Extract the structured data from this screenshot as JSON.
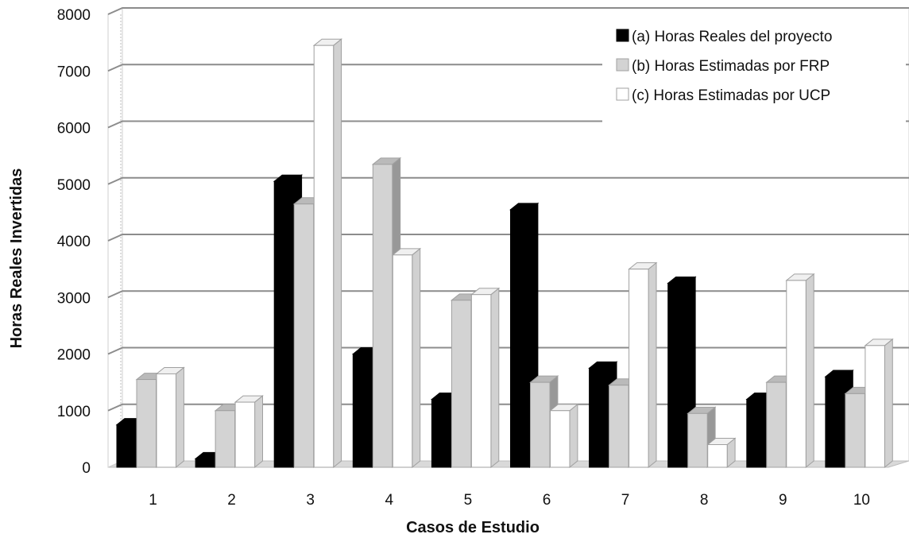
{
  "chart_data": {
    "type": "bar",
    "title": "",
    "xlabel": "Casos de Estudio",
    "ylabel": "Horas Reales Invertidas",
    "ylim": [
      0,
      8000
    ],
    "yticks": [
      0,
      1000,
      2000,
      3000,
      4000,
      5000,
      6000,
      7000,
      8000
    ],
    "categories": [
      "1",
      "2",
      "3",
      "4",
      "5",
      "6",
      "7",
      "8",
      "9",
      "10"
    ],
    "grid": true,
    "legend_position": "top-right",
    "series": [
      {
        "name": "(a) Horas Reales del proyecto",
        "color": "#000000",
        "values": [
          750,
          150,
          5050,
          2000,
          1200,
          4550,
          1750,
          3250,
          1200,
          1600
        ]
      },
      {
        "name": "(b) Horas Estimadas por FRP",
        "color": "#d3d3d3",
        "values": [
          1550,
          1000,
          4650,
          5350,
          2950,
          1500,
          1450,
          950,
          1500,
          1300
        ]
      },
      {
        "name": "(c) Horas Estimadas por UCP",
        "color": "#ffffff",
        "values": [
          1650,
          1150,
          7450,
          3750,
          3050,
          1000,
          3500,
          400,
          3300,
          2150
        ]
      }
    ]
  }
}
